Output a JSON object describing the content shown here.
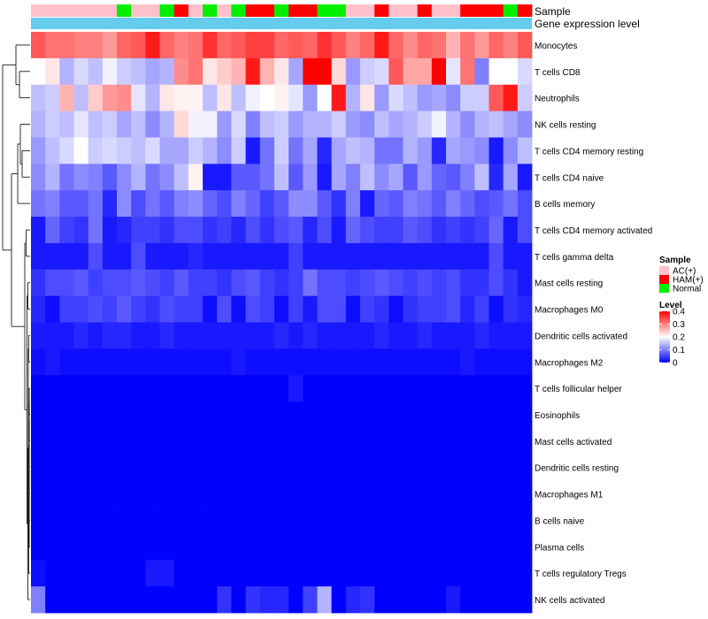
{
  "chart_data": {
    "type": "heatmap",
    "title": "",
    "annotation_labels": {
      "sample": "Sample",
      "gene": "Gene expression level"
    },
    "legend_sample": {
      "title": "Sample",
      "entries": [
        {
          "label": "AC(+)",
          "color": "#ffc0cb"
        },
        {
          "label": "HAM(+)",
          "color": "#ff0000"
        },
        {
          "label": "Normal",
          "color": "#00ee00"
        }
      ]
    },
    "legend_level": {
      "title": "Level",
      "ticks": [
        "0.4",
        "0.3",
        "0.2",
        "0.1",
        "0"
      ],
      "tick_values": [
        0.4,
        0.3,
        0.2,
        0.1,
        0.0
      ],
      "range": [
        0,
        0.4
      ],
      "colors": [
        "#0000ff",
        "#ffffff",
        "#ff0000"
      ]
    },
    "gene_bar_color": "#66ccee",
    "sample_groups": [
      "AC(+)",
      "AC(+)",
      "AC(+)",
      "AC(+)",
      "AC(+)",
      "AC(+)",
      "Normal",
      "AC(+)",
      "AC(+)",
      "Normal",
      "HAM(+)",
      "AC(+)",
      "Normal",
      "AC(+)",
      "Normal",
      "HAM(+)",
      "HAM(+)",
      "Normal",
      "HAM(+)",
      "HAM(+)",
      "Normal",
      "Normal",
      "AC(+)",
      "AC(+)",
      "HAM(+)",
      "AC(+)",
      "AC(+)",
      "HAM(+)",
      "AC(+)",
      "AC(+)",
      "HAM(+)",
      "HAM(+)",
      "HAM(+)",
      "Normal",
      "HAM(+)"
    ],
    "rows": [
      "Monocytes",
      "T cells CD8",
      "Neutrophils",
      "NK cells resting",
      "T cells CD4 memory resting",
      "T cells CD4 naive",
      "B cells memory",
      "T cells CD4 memory activated",
      "T cells gamma delta",
      "Mast cells resting",
      "Macrophages M0",
      "Dendritic cells activated",
      "Macrophages M2",
      "T cells follicular helper",
      "Eosinophils",
      "Mast cells activated",
      "Dendritic cells resting",
      "Macrophages M1",
      "B cells naive",
      "Plasma cells",
      "T cells regulatory  Tregs",
      "NK cells activated"
    ],
    "values": [
      [
        0.33,
        0.31,
        0.31,
        0.3,
        0.3,
        0.28,
        0.32,
        0.33,
        0.38,
        0.32,
        0.3,
        0.31,
        0.36,
        0.32,
        0.33,
        0.35,
        0.35,
        0.32,
        0.33,
        0.32,
        0.36,
        0.33,
        0.3,
        0.32,
        0.38,
        0.32,
        0.29,
        0.32,
        0.31,
        0.26,
        0.31,
        0.28,
        0.32,
        0.3,
        0.33
      ],
      [
        0.2,
        0.22,
        0.14,
        0.17,
        0.15,
        0.19,
        0.16,
        0.15,
        0.13,
        0.14,
        0.29,
        0.31,
        0.22,
        0.24,
        0.26,
        0.38,
        0.26,
        0.22,
        0.13,
        0.4,
        0.4,
        0.23,
        0.12,
        0.16,
        0.17,
        0.33,
        0.27,
        0.27,
        0.4,
        0.18,
        0.31,
        0.1,
        0.2,
        0.2,
        0.17
      ],
      [
        0.15,
        0.16,
        0.26,
        0.15,
        0.24,
        0.28,
        0.29,
        0.18,
        0.14,
        0.22,
        0.21,
        0.21,
        0.15,
        0.22,
        0.15,
        0.19,
        0.2,
        0.21,
        0.18,
        0.12,
        0.2,
        0.38,
        0.14,
        0.22,
        0.12,
        0.17,
        0.15,
        0.12,
        0.13,
        0.11,
        0.16,
        0.16,
        0.33,
        0.38,
        0.16
      ],
      [
        0.14,
        0.16,
        0.15,
        0.18,
        0.15,
        0.16,
        0.13,
        0.15,
        0.11,
        0.14,
        0.23,
        0.19,
        0.19,
        0.12,
        0.17,
        0.1,
        0.15,
        0.16,
        0.12,
        0.14,
        0.14,
        0.16,
        0.12,
        0.11,
        0.15,
        0.13,
        0.14,
        0.16,
        0.19,
        0.14,
        0.11,
        0.14,
        0.15,
        0.13,
        0.11
      ],
      [
        0.12,
        0.15,
        0.17,
        0.2,
        0.16,
        0.17,
        0.16,
        0.15,
        0.17,
        0.13,
        0.13,
        0.16,
        0.14,
        0.11,
        0.16,
        0.02,
        0.09,
        0.16,
        0.09,
        0.13,
        0.03,
        0.13,
        0.15,
        0.14,
        0.09,
        0.09,
        0.14,
        0.12,
        0.03,
        0.13,
        0.12,
        0.11,
        0.02,
        0.11,
        0.15
      ],
      [
        0.11,
        0.14,
        0.09,
        0.11,
        0.1,
        0.07,
        0.11,
        0.14,
        0.09,
        0.11,
        0.15,
        0.21,
        0.02,
        0.02,
        0.07,
        0.07,
        0.09,
        0.15,
        0.07,
        0.12,
        0.02,
        0.13,
        0.1,
        0.15,
        0.11,
        0.13,
        0.07,
        0.12,
        0.08,
        0.07,
        0.1,
        0.15,
        0.03,
        0.13,
        0.02
      ],
      [
        0.09,
        0.1,
        0.07,
        0.07,
        0.09,
        0.03,
        0.11,
        0.06,
        0.09,
        0.07,
        0.1,
        0.11,
        0.08,
        0.06,
        0.1,
        0.08,
        0.05,
        0.07,
        0.11,
        0.11,
        0.07,
        0.04,
        0.1,
        0.02,
        0.08,
        0.07,
        0.1,
        0.09,
        0.07,
        0.1,
        0.08,
        0.06,
        0.07,
        0.09,
        0.06
      ],
      [
        0.02,
        0.08,
        0.05,
        0.04,
        0.09,
        0.02,
        0.03,
        0.05,
        0.05,
        0.04,
        0.06,
        0.06,
        0.04,
        0.05,
        0.03,
        0.06,
        0.04,
        0.06,
        0.07,
        0.03,
        0.06,
        0.02,
        0.08,
        0.06,
        0.05,
        0.05,
        0.07,
        0.06,
        0.04,
        0.05,
        0.04,
        0.05,
        0.08,
        0.02,
        0.06
      ],
      [
        0.02,
        0.02,
        0.02,
        0.02,
        0.06,
        0.02,
        0.02,
        0.06,
        0.02,
        0.02,
        0.02,
        0.03,
        0.02,
        0.02,
        0.02,
        0.02,
        0.02,
        0.02,
        0.05,
        0.02,
        0.02,
        0.02,
        0.02,
        0.02,
        0.02,
        0.02,
        0.02,
        0.02,
        0.02,
        0.02,
        0.02,
        0.02,
        0.06,
        0.02,
        0.02
      ],
      [
        0.04,
        0.06,
        0.06,
        0.07,
        0.05,
        0.06,
        0.06,
        0.07,
        0.06,
        0.05,
        0.07,
        0.05,
        0.05,
        0.04,
        0.06,
        0.07,
        0.05,
        0.04,
        0.05,
        0.09,
        0.06,
        0.06,
        0.05,
        0.06,
        0.07,
        0.06,
        0.05,
        0.06,
        0.05,
        0.06,
        0.04,
        0.04,
        0.06,
        0.04,
        0.02
      ],
      [
        0.03,
        0.01,
        0.05,
        0.05,
        0.06,
        0.05,
        0.07,
        0.05,
        0.04,
        0.06,
        0.05,
        0.05,
        0.01,
        0.06,
        0.01,
        0.06,
        0.05,
        0.01,
        0.05,
        0.02,
        0.06,
        0.06,
        0.01,
        0.05,
        0.04,
        0.01,
        0.04,
        0.05,
        0.05,
        0.06,
        0.03,
        0.05,
        0.01,
        0.04,
        0.03
      ],
      [
        0.02,
        0.02,
        0.02,
        0.03,
        0.02,
        0.03,
        0.03,
        0.02,
        0.02,
        0.03,
        0.02,
        0.02,
        0.02,
        0.02,
        0.02,
        0.02,
        0.02,
        0.03,
        0.02,
        0.03,
        0.02,
        0.02,
        0.02,
        0.02,
        0.03,
        0.02,
        0.02,
        0.03,
        0.02,
        0.02,
        0.02,
        0.03,
        0.02,
        0.02,
        0.02
      ],
      [
        0.01,
        0.02,
        0.01,
        0.01,
        0.01,
        0.01,
        0.01,
        0.01,
        0.01,
        0.01,
        0.01,
        0.01,
        0.01,
        0.01,
        0.02,
        0.01,
        0.01,
        0.01,
        0.01,
        0.01,
        0.01,
        0.01,
        0.01,
        0.01,
        0.01,
        0.01,
        0.01,
        0.01,
        0.01,
        0.01,
        0.02,
        0.01,
        0.01,
        0.01,
        0.01
      ],
      [
        0.0,
        0.0,
        0.0,
        0.0,
        0.0,
        0.0,
        0.0,
        0.0,
        0.0,
        0.0,
        0.0,
        0.0,
        0.0,
        0.0,
        0.0,
        0.0,
        0.0,
        0.0,
        0.02,
        0.0,
        0.0,
        0.0,
        0.0,
        0.0,
        0.0,
        0.0,
        0.0,
        0.0,
        0.0,
        0.0,
        0.0,
        0.0,
        0.0,
        0.0,
        0.0
      ],
      [
        0.0,
        0.0,
        0.0,
        0.0,
        0.0,
        0.0,
        0.0,
        0.0,
        0.0,
        0.0,
        0.0,
        0.0,
        0.0,
        0.0,
        0.0,
        0.0,
        0.0,
        0.0,
        0.0,
        0.0,
        0.0,
        0.0,
        0.0,
        0.0,
        0.0,
        0.0,
        0.0,
        0.0,
        0.0,
        0.0,
        0.0,
        0.0,
        0.0,
        0.0,
        0.0
      ],
      [
        0.0,
        0.0,
        0.0,
        0.0,
        0.0,
        0.0,
        0.0,
        0.0,
        0.0,
        0.0,
        0.0,
        0.0,
        0.0,
        0.0,
        0.0,
        0.0,
        0.0,
        0.0,
        0.0,
        0.0,
        0.0,
        0.0,
        0.0,
        0.0,
        0.0,
        0.0,
        0.0,
        0.0,
        0.0,
        0.0,
        0.0,
        0.0,
        0.0,
        0.0,
        0.0
      ],
      [
        0.0,
        0.0,
        0.0,
        0.0,
        0.0,
        0.0,
        0.0,
        0.0,
        0.0,
        0.0,
        0.0,
        0.0,
        0.0,
        0.0,
        0.0,
        0.0,
        0.0,
        0.0,
        0.0,
        0.0,
        0.0,
        0.0,
        0.0,
        0.0,
        0.0,
        0.0,
        0.0,
        0.0,
        0.0,
        0.0,
        0.0,
        0.0,
        0.0,
        0.0,
        0.0
      ],
      [
        0.0,
        0.0,
        0.0,
        0.0,
        0.0,
        0.0,
        0.0,
        0.0,
        0.0,
        0.0,
        0.0,
        0.0,
        0.0,
        0.0,
        0.0,
        0.0,
        0.0,
        0.0,
        0.0,
        0.0,
        0.0,
        0.0,
        0.0,
        0.0,
        0.0,
        0.0,
        0.0,
        0.0,
        0.0,
        0.0,
        0.0,
        0.0,
        0.0,
        0.0,
        0.0
      ],
      [
        0.0,
        0.0,
        0.0,
        0.0,
        0.0,
        0.0,
        0.0,
        0.0,
        0.0,
        0.0,
        0.0,
        0.0,
        0.0,
        0.0,
        0.0,
        0.0,
        0.0,
        0.0,
        0.0,
        0.0,
        0.0,
        0.0,
        0.0,
        0.0,
        0.0,
        0.0,
        0.0,
        0.0,
        0.0,
        0.0,
        0.0,
        0.0,
        0.0,
        0.0,
        0.0
      ],
      [
        0.0,
        0.0,
        0.0,
        0.0,
        0.0,
        0.0,
        0.0,
        0.0,
        0.0,
        0.0,
        0.0,
        0.0,
        0.0,
        0.0,
        0.0,
        0.0,
        0.0,
        0.0,
        0.0,
        0.0,
        0.0,
        0.0,
        0.0,
        0.0,
        0.0,
        0.0,
        0.0,
        0.0,
        0.0,
        0.0,
        0.0,
        0.0,
        0.0,
        0.0,
        0.0
      ],
      [
        0.01,
        0.0,
        0.0,
        0.0,
        0.0,
        0.0,
        0.0,
        0.0,
        0.02,
        0.02,
        0.0,
        0.0,
        0.0,
        0.0,
        0.0,
        0.0,
        0.0,
        0.0,
        0.0,
        0.0,
        0.0,
        0.0,
        0.0,
        0.0,
        0.0,
        0.0,
        0.0,
        0.0,
        0.0,
        0.0,
        0.0,
        0.0,
        0.0,
        0.0,
        0.0
      ],
      [
        0.1,
        0.0,
        0.0,
        0.0,
        0.0,
        0.0,
        0.0,
        0.0,
        0.0,
        0.0,
        0.0,
        0.0,
        0.0,
        0.04,
        0.0,
        0.04,
        0.03,
        0.03,
        0.0,
        0.05,
        0.14,
        0.0,
        0.03,
        0.04,
        0.0,
        0.0,
        0.0,
        0.0,
        0.0,
        0.02,
        0.0,
        0.0,
        0.0,
        0.0,
        0.0
      ]
    ]
  }
}
